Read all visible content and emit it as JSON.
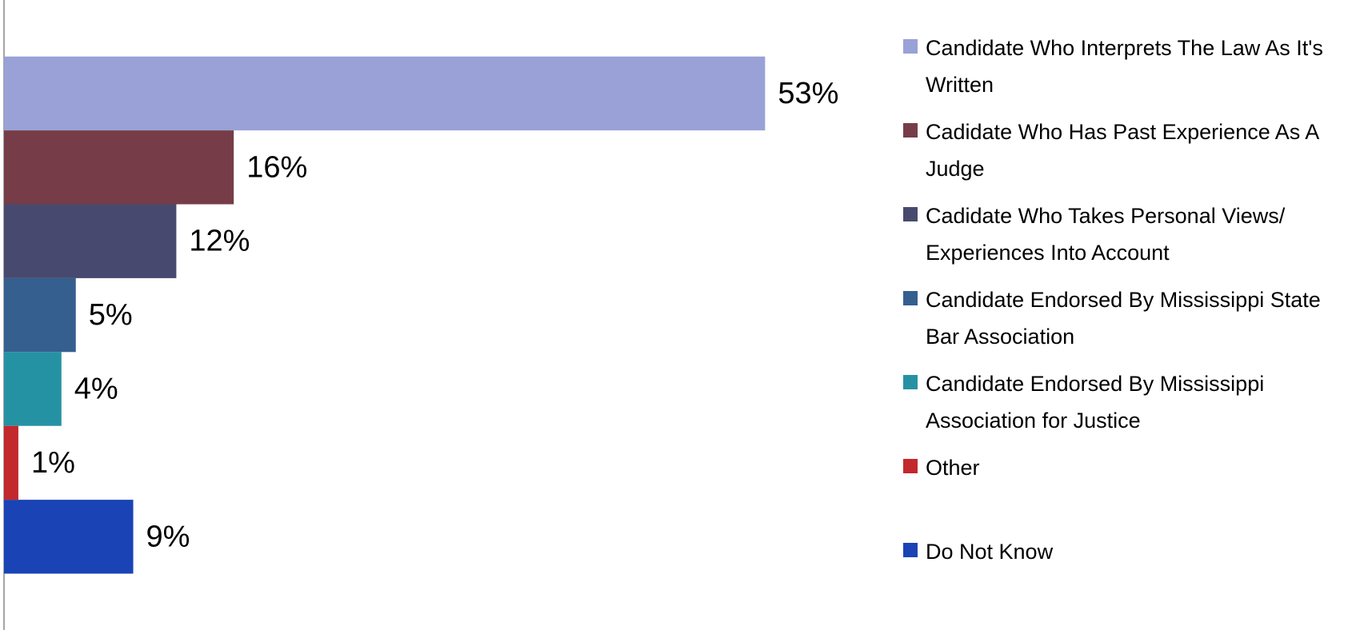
{
  "chart_data": {
    "type": "bar",
    "orientation": "horizontal",
    "xlim": [
      0,
      60
    ],
    "series": [
      {
        "name": "Candidate Who Interprets The Law As It's Written",
        "color": "#99a1d6",
        "values": [
          53
        ],
        "value_labels": [
          "53%"
        ]
      },
      {
        "name": "Cadidate Who Has Past Experience As A Judge",
        "color": "#763d48",
        "values": [
          16
        ],
        "value_labels": [
          "16%"
        ]
      },
      {
        "name": "Cadidate Who Takes Personal Views/ Experiences Into Account",
        "color": "#474a6e",
        "values": [
          12
        ],
        "value_labels": [
          "12%"
        ]
      },
      {
        "name": "Candidate Endorsed By Mississippi State Bar Association",
        "color": "#355f8e",
        "values": [
          5
        ],
        "value_labels": [
          "5%"
        ]
      },
      {
        "name": "Candidate Endorsed By Mississippi Association for Justice",
        "color": "#2592a4",
        "values": [
          4
        ],
        "value_labels": [
          "4%"
        ]
      },
      {
        "name": "Other",
        "color": "#c3282c",
        "values": [
          1
        ],
        "value_labels": [
          "1%"
        ]
      },
      {
        "name": "Do Not Know",
        "color": "#1a43b5",
        "values": [
          9
        ],
        "value_labels": [
          "9%"
        ]
      }
    ]
  }
}
